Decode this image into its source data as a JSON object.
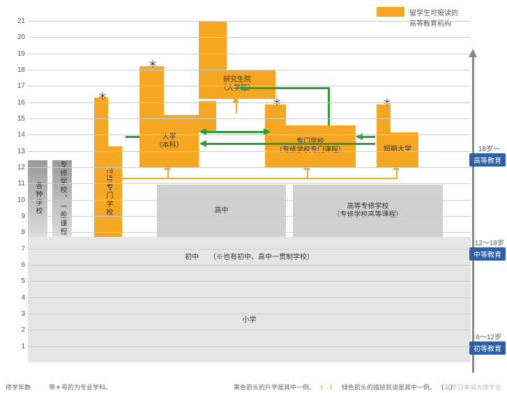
{
  "legend_top": "留学生可报读的\n高等教育机构",
  "yaxis": [
    "21",
    "20",
    "19",
    "18",
    "17",
    "16",
    "15",
    "14",
    "13",
    "12",
    "11",
    "10",
    "9",
    "8",
    "7",
    "6",
    "5",
    "4",
    "3",
    "2",
    "1"
  ],
  "yaxis_label": "修学年数",
  "blocks": {
    "gradschool": "研究生院\n（大学院）",
    "university": "大学\n（本科）",
    "senmon": "专门学校\n（专修学校专门课程）",
    "tanki": "短期大学",
    "koutou_senmon": "高等专门学校",
    "kakushu": "各种学校",
    "senshu_ippan": "专修学校、一般课程",
    "highschool": "高中",
    "koutou_senshu": "高等专修学校\n（专修学校高等课程）",
    "junior": "初中　　（※也有初中、高中一贯制学校）",
    "elementary": "小学"
  },
  "side": {
    "a18": "18岁～",
    "higher": "高等教育",
    "a12": "12～18岁",
    "middle": "中等教育",
    "a6": "6～12岁",
    "elem": "初等教育"
  },
  "footer": {
    "note": "带＊号的为专业学科。",
    "yellow": "黄色箭头的升学是其中一例。",
    "green": "绿色箭头的插班就读是其中一例。",
    "watermark": "留学日本周大侠学长"
  },
  "colors": {
    "orange": "#f5a623",
    "green": "#2d9d3a",
    "gray": "#d0d0d0",
    "badge": "#2b5fa8"
  }
}
